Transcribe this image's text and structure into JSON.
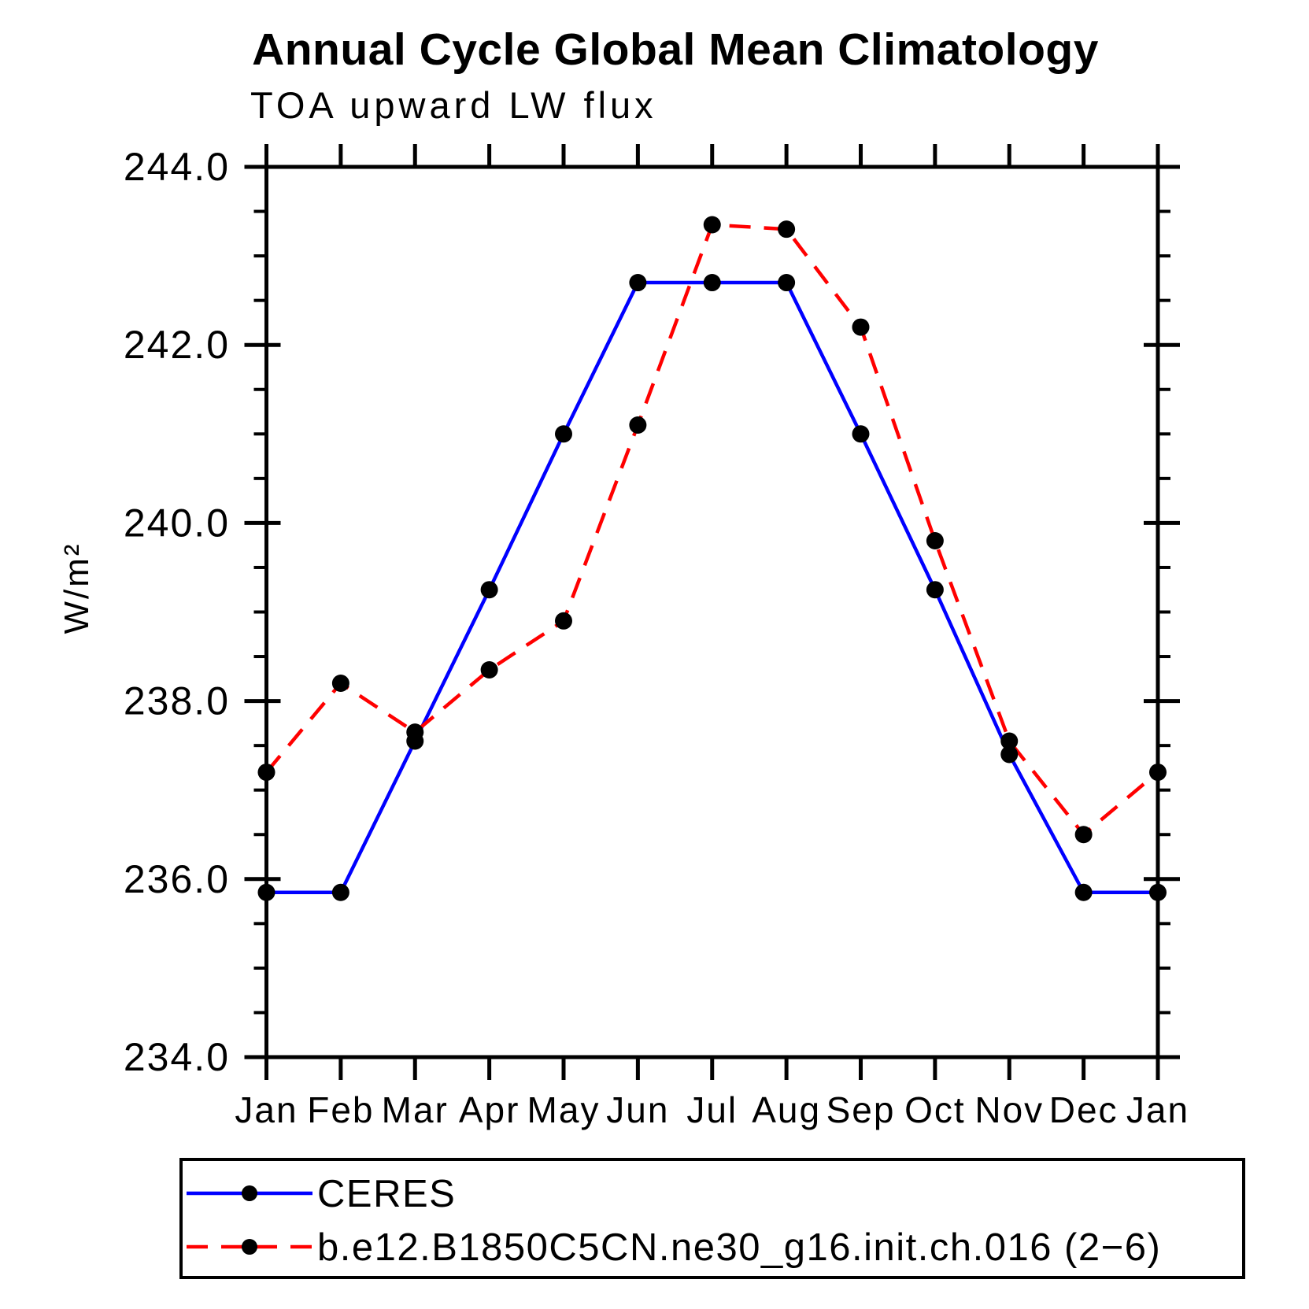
{
  "title": "Annual Cycle Global Mean Climatology",
  "chart_data": {
    "type": "line",
    "title": "Annual Cycle Global Mean Climatology",
    "subtitle": "TOA upward LW flux",
    "ylabel": "W/m²",
    "categories": [
      "Jan",
      "Feb",
      "Mar",
      "Apr",
      "May",
      "Jun",
      "Jul",
      "Aug",
      "Sep",
      "Oct",
      "Nov",
      "Dec",
      "Jan"
    ],
    "ylim": [
      234.0,
      244.0
    ],
    "ytick_major": [
      234.0,
      236.0,
      238.0,
      240.0,
      242.0,
      244.0
    ],
    "ytick_labels": [
      "234.0",
      "236.0",
      "238.0",
      "240.0",
      "242.0",
      "244.0"
    ],
    "ytick_minor_step": 0.5,
    "grid": false,
    "axis_color": "#000000",
    "marker": {
      "shape": "circle",
      "color": "#000000"
    },
    "legend_position": "bottom-left-box",
    "series": [
      {
        "name": "CERES",
        "color": "#0000ff",
        "line_style": "solid",
        "values": [
          235.85,
          235.85,
          237.55,
          239.25,
          241.0,
          242.7,
          242.7,
          242.7,
          241.0,
          239.25,
          237.4,
          235.85,
          235.85
        ]
      },
      {
        "name": "b.e12.B1850C5CN.ne30_g16.init.ch.016 (2−6)",
        "color": "#ff0000",
        "line_style": "dashed",
        "values": [
          237.2,
          238.2,
          237.65,
          238.35,
          238.9,
          241.1,
          243.35,
          243.3,
          242.2,
          239.8,
          237.55,
          236.5,
          237.2
        ]
      }
    ]
  }
}
